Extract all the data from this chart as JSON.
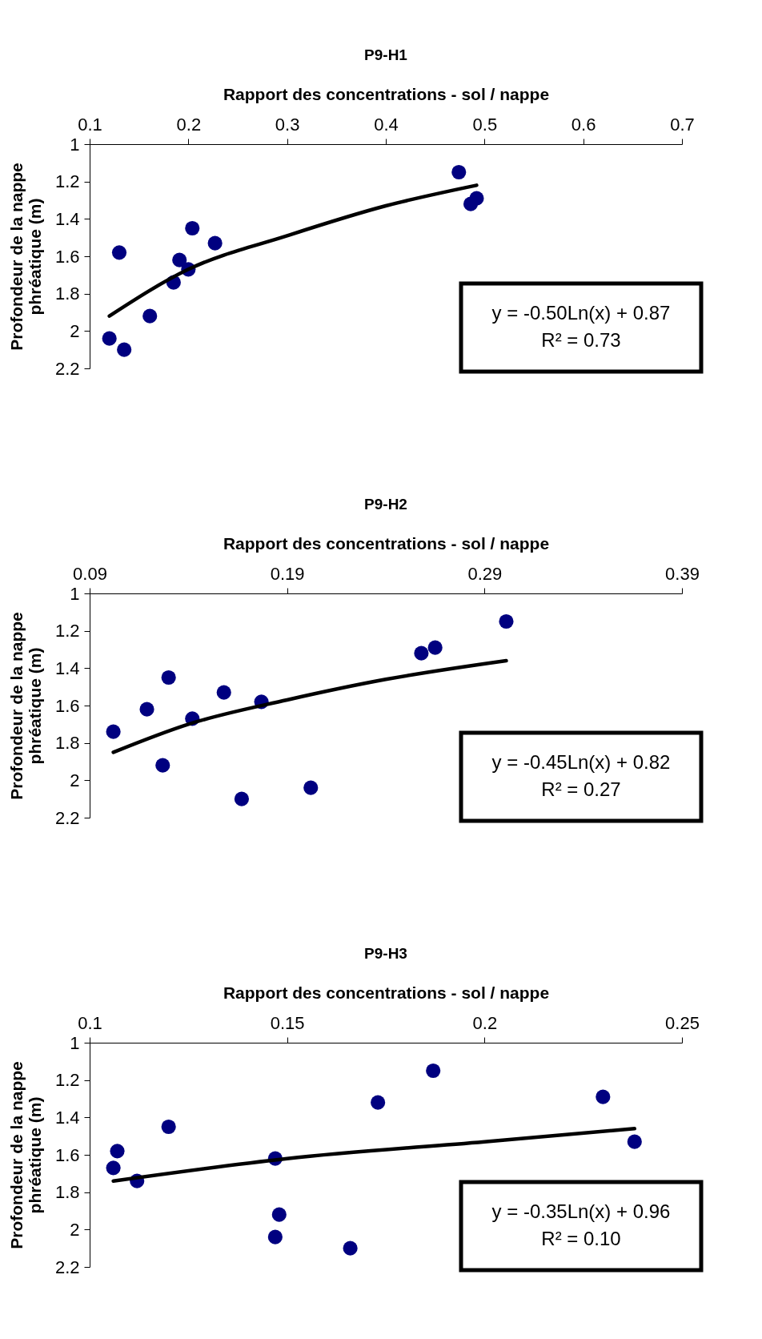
{
  "chart_data": [
    {
      "type": "scatter",
      "title": "P9-H1",
      "xlabel": "Rapport des concentrations - sol / nappe",
      "ylabel": "Profondeur de la nappe phréatique (m)",
      "xlim": [
        0.1,
        0.7
      ],
      "xticks": [
        0.1,
        0.2,
        0.3,
        0.4,
        0.5,
        0.6,
        0.7
      ],
      "ylim": [
        2.2,
        1
      ],
      "yticks": [
        1,
        1.2,
        1.4,
        1.6,
        1.8,
        2,
        2.2
      ],
      "grid": false,
      "annotations": [
        "y = -0.50Ln(x) + 0.87",
        "R² = 0.73"
      ],
      "series": [
        {
          "color": "#000080",
          "marker": "circle",
          "x": [
            0.474,
            0.492,
            0.486,
            0.204,
            0.227,
            0.13,
            0.191,
            0.2,
            0.185,
            0.161,
            0.12,
            0.135
          ],
          "values": [
            1.15,
            1.29,
            1.32,
            1.45,
            1.53,
            1.58,
            1.62,
            1.67,
            1.74,
            1.92,
            2.04,
            2.1
          ]
        },
        {
          "type": "line",
          "color": "#000000",
          "marker": "none",
          "x": [
            0.12,
            0.2,
            0.3,
            0.4,
            0.492
          ],
          "values": [
            1.92,
            1.67,
            1.49,
            1.33,
            1.22
          ]
        }
      ]
    },
    {
      "type": "scatter",
      "title": "P9-H2",
      "xlabel": "Rapport des concentrations - sol / nappe",
      "ylabel": "Profondeur de la nappe phréatique (m)",
      "xlim": [
        0.09,
        0.39
      ],
      "xticks": [
        0.09,
        0.19,
        0.29,
        0.39
      ],
      "ylim": [
        2.2,
        1
      ],
      "yticks": [
        1,
        1.2,
        1.4,
        1.6,
        1.8,
        2,
        2.2
      ],
      "grid": false,
      "annotations": [
        "y = -0.45Ln(x) + 0.82",
        "R² = 0.27"
      ],
      "series": [
        {
          "color": "#000080",
          "marker": "circle",
          "x": [
            0.301,
            0.258,
            0.265,
            0.13,
            0.158,
            0.177,
            0.119,
            0.142,
            0.102,
            0.127,
            0.167,
            0.202
          ],
          "values": [
            1.15,
            1.32,
            1.29,
            1.45,
            1.53,
            1.58,
            1.62,
            1.67,
            1.74,
            1.92,
            2.1,
            2.04
          ]
        },
        {
          "type": "line",
          "color": "#000000",
          "marker": "none",
          "x": [
            0.102,
            0.14,
            0.19,
            0.24,
            0.301
          ],
          "values": [
            1.85,
            1.7,
            1.57,
            1.46,
            1.36
          ]
        }
      ]
    },
    {
      "type": "scatter",
      "title": "P9-H3",
      "xlabel": "Rapport des concentrations - sol / nappe",
      "ylabel": "Profondeur de la nappe phréatique (m)",
      "xlim": [
        0.1,
        0.25
      ],
      "xticks": [
        0.1,
        0.15,
        0.2,
        0.25
      ],
      "ylim": [
        2.2,
        1
      ],
      "yticks": [
        1,
        1.2,
        1.4,
        1.6,
        1.8,
        2,
        2.2
      ],
      "grid": false,
      "annotations": [
        "y = -0.35Ln(x) + 0.96",
        "R² = 0.10"
      ],
      "series": [
        {
          "color": "#000080",
          "marker": "circle",
          "x": [
            0.187,
            0.173,
            0.23,
            0.12,
            0.238,
            0.107,
            0.106,
            0.112,
            0.147,
            0.148,
            0.147,
            0.166
          ],
          "values": [
            1.15,
            1.32,
            1.29,
            1.45,
            1.53,
            1.58,
            1.67,
            1.74,
            1.62,
            1.92,
            2.04,
            2.1
          ]
        },
        {
          "type": "line",
          "color": "#000000",
          "marker": "none",
          "x": [
            0.106,
            0.15,
            0.2,
            0.238
          ],
          "values": [
            1.74,
            1.62,
            1.53,
            1.46
          ]
        }
      ]
    }
  ]
}
